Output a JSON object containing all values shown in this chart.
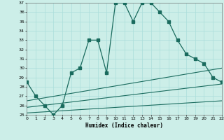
{
  "xlabel": "Humidex (Indice chaleur)",
  "bg_color": "#cceee8",
  "grid_color": "#aaddda",
  "line_color": "#1a6b5e",
  "xlim": [
    0,
    22
  ],
  "ylim": [
    25,
    37
  ],
  "yticks": [
    25,
    26,
    27,
    28,
    29,
    30,
    31,
    32,
    33,
    34,
    35,
    36,
    37
  ],
  "xticks": [
    0,
    1,
    2,
    3,
    4,
    5,
    6,
    7,
    8,
    9,
    10,
    11,
    12,
    13,
    14,
    15,
    16,
    17,
    18,
    19,
    20,
    21,
    22
  ],
  "curve1_x": [
    0,
    1,
    2,
    3,
    4,
    5,
    6,
    7,
    8,
    9,
    10,
    11,
    12,
    13,
    14,
    15,
    16,
    17,
    18,
    19,
    20,
    21,
    22
  ],
  "curve1_y": [
    28.5,
    27.0,
    26.0,
    25.0,
    26.0,
    29.5,
    30.0,
    33.0,
    33.0,
    29.5,
    37.0,
    37.0,
    35.0,
    37.0,
    37.0,
    36.0,
    35.0,
    33.0,
    31.5,
    31.0,
    30.5,
    29.0,
    28.5
  ],
  "curve2_x": [
    0,
    22
  ],
  "curve2_y": [
    26.5,
    30.0
  ],
  "curve3_x": [
    0,
    22
  ],
  "curve3_y": [
    25.8,
    28.3
  ],
  "curve4_x": [
    0,
    22
  ],
  "curve4_y": [
    25.2,
    26.5
  ]
}
